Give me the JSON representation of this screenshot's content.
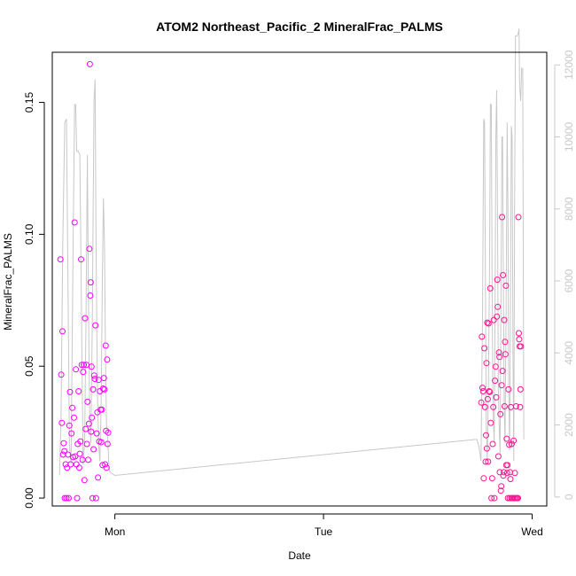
{
  "chart_data": {
    "type": "scatter",
    "title": "ATOM2 Northeast_Pacific_2 MineralFrac_PALMS",
    "xlabel": "Date",
    "ylabel": "MineralFrac_PALMS",
    "x_ticks": [
      "Mon",
      "Tue",
      "Wed"
    ],
    "xlim": [
      -0.3,
      2.07
    ],
    "y_ticks": [
      "0.00",
      "0.05",
      "0.10",
      "0.15"
    ],
    "ylim": [
      -0.003,
      0.169
    ],
    "y2_ticks": [
      "0",
      "2000",
      "4000",
      "6000",
      "8000",
      "10000",
      "12000"
    ],
    "y2lim": [
      -250,
      12350
    ],
    "grid": false,
    "colors": {
      "points_early": "#ff00ff",
      "points_late": "#ff1493",
      "altitude_line": "#c8c8c8",
      "frame": "#000000"
    },
    "series": [
      {
        "kind": "scatter",
        "y_axis": "left",
        "points": [
          [
            -0.261,
            0.0905
          ],
          [
            -0.257,
            0.0468
          ],
          [
            -0.254,
            0.0285
          ],
          [
            -0.251,
            0.0632
          ],
          [
            -0.248,
            0.0165
          ],
          [
            -0.245,
            0.0208
          ],
          [
            -0.242,
            0.0178
          ],
          [
            -0.24,
            0.0
          ],
          [
            -0.236,
            0.0128
          ],
          [
            -0.232,
            0.0
          ],
          [
            -0.229,
            0.0115
          ],
          [
            -0.225,
            0.0165
          ],
          [
            -0.222,
            0.0
          ],
          [
            -0.218,
            0.0275
          ],
          [
            -0.215,
            0.0402
          ],
          [
            -0.212,
            0.0128
          ],
          [
            -0.208,
            0.0245
          ],
          [
            -0.204,
            0.0342
          ],
          [
            -0.2,
            0.0155
          ],
          [
            -0.196,
            0.0305
          ],
          [
            -0.193,
            0.1045
          ],
          [
            -0.19,
            0.0158
          ],
          [
            -0.187,
            0.0488
          ],
          [
            -0.184,
            0.0128
          ],
          [
            -0.181,
            0.0
          ],
          [
            -0.178,
            0.0205
          ],
          [
            -0.174,
            0.0405
          ],
          [
            -0.171,
            0.0115
          ],
          [
            -0.168,
            0.0168
          ],
          [
            -0.165,
            0.0215
          ],
          [
            -0.162,
            0.0905
          ],
          [
            -0.159,
            0.0505
          ],
          [
            -0.155,
            0.0145
          ],
          [
            -0.152,
            0.0478
          ],
          [
            -0.149,
            0.0505
          ],
          [
            -0.146,
            0.0068
          ],
          [
            -0.143,
            0.0682
          ],
          [
            -0.14,
            0.0262
          ],
          [
            -0.137,
            0.0505
          ],
          [
            -0.134,
            0.0205
          ],
          [
            -0.131,
            0.0365
          ],
          [
            -0.128,
            0.0145
          ],
          [
            -0.124,
            0.0282
          ],
          [
            -0.122,
            0.0945
          ],
          [
            -0.12,
            0.1645
          ],
          [
            -0.118,
            0.0768
          ],
          [
            -0.116,
            0.0818
          ],
          [
            -0.114,
            0.0252
          ],
          [
            -0.112,
            0.0498
          ],
          [
            -0.11,
            0.0305
          ],
          [
            -0.107,
            0.0
          ],
          [
            -0.104,
            0.0412
          ],
          [
            -0.102,
            0.0185
          ],
          [
            -0.099,
            0.0465
          ],
          [
            -0.096,
            0.0452
          ],
          [
            -0.093,
            0.0655
          ],
          [
            -0.09,
            0.0
          ],
          [
            -0.087,
            0.0245
          ],
          [
            -0.084,
            0.0325
          ],
          [
            -0.081,
            0.0078
          ],
          [
            -0.078,
            0.0448
          ],
          [
            -0.075,
            0.0215
          ],
          [
            -0.072,
            0.0405
          ],
          [
            -0.068,
            0.0335
          ],
          [
            -0.065,
            0.0212
          ],
          [
            -0.062,
            0.0335
          ],
          [
            -0.059,
            0.0125
          ],
          [
            -0.056,
            0.0415
          ],
          [
            -0.053,
            0.0455
          ],
          [
            -0.05,
            0.0412
          ],
          [
            -0.047,
            0.0128
          ],
          [
            -0.044,
            0.0578
          ],
          [
            -0.042,
            0.0255
          ],
          [
            -0.04,
            0.0115
          ],
          [
            -0.037,
            0.0525
          ],
          [
            -0.035,
            0.0205
          ],
          [
            -0.032,
            0.0248
          ],
          [
            1.756,
            0.0362
          ],
          [
            1.759,
            0.0612
          ],
          [
            1.762,
            0.0418
          ],
          [
            1.765,
            0.0405
          ],
          [
            1.768,
            0.0075
          ],
          [
            1.771,
            0.0568
          ],
          [
            1.774,
            0.0345
          ],
          [
            1.777,
            0.0138
          ],
          [
            1.779,
            0.0238
          ],
          [
            1.781,
            0.0512
          ],
          [
            1.783,
            0.0188
          ],
          [
            1.785,
            0.0665
          ],
          [
            1.787,
            0.0375
          ],
          [
            1.789,
            0.0138
          ],
          [
            1.791,
            0.0662
          ],
          [
            1.794,
            0.0405
          ],
          [
            1.797,
            0.0402
          ],
          [
            1.799,
            0.0795
          ],
          [
            1.802,
            0.0285
          ],
          [
            1.805,
            0.0
          ],
          [
            1.808,
            0.0075
          ],
          [
            1.811,
            0.0205
          ],
          [
            1.814,
            0.0345
          ],
          [
            1.816,
            0.0675
          ],
          [
            1.819,
            0.0
          ],
          [
            1.822,
            0.0445
          ],
          [
            1.825,
            0.0498
          ],
          [
            1.828,
            0.0382
          ],
          [
            1.831,
            0.0688
          ],
          [
            1.833,
            0.0828
          ],
          [
            1.835,
            0.0725
          ],
          [
            1.838,
            0.0158
          ],
          [
            1.841,
            0.0552
          ],
          [
            1.843,
            0.0535
          ],
          [
            1.845,
            0.0098
          ],
          [
            1.848,
            0.0318
          ],
          [
            1.85,
            0.0028
          ],
          [
            1.852,
            0.0045
          ],
          [
            1.854,
            0.0428
          ],
          [
            1.856,
            0.1065
          ],
          [
            1.858,
            0.0482
          ],
          [
            1.86,
            0.0845
          ],
          [
            1.862,
            0.0085
          ],
          [
            1.864,
            0.0098
          ],
          [
            1.866,
            0.0675
          ],
          [
            1.868,
            0.0348
          ],
          [
            1.87,
            0.0592
          ],
          [
            1.872,
            0.0545
          ],
          [
            1.874,
            0.0805
          ],
          [
            1.876,
            0.0125
          ],
          [
            1.878,
            0.0225
          ],
          [
            1.88,
            0.0095
          ],
          [
            1.882,
            0.0125
          ],
          [
            1.884,
            0.0
          ],
          [
            1.887,
            0.0412
          ],
          [
            1.89,
            0.0202
          ],
          [
            1.892,
            0.0
          ],
          [
            1.894,
            0.0098
          ],
          [
            1.896,
            0.0072
          ],
          [
            1.898,
            0.0345
          ],
          [
            1.9,
            0.0
          ],
          [
            1.902,
            0.0205
          ],
          [
            1.905,
            0.0
          ],
          [
            1.908,
            0.0
          ],
          [
            1.911,
            0.0218
          ],
          [
            1.914,
            0.0
          ],
          [
            1.917,
            0.0095
          ],
          [
            1.92,
            0.0
          ],
          [
            1.923,
            0.0348
          ],
          [
            1.926,
            0.0
          ],
          [
            1.929,
            0.0
          ],
          [
            1.932,
            0.0
          ],
          [
            1.934,
            0.1065
          ],
          [
            1.936,
            0.0625
          ],
          [
            1.938,
            0.0602
          ],
          [
            1.94,
            0.0575
          ],
          [
            1.942,
            0.0345
          ],
          [
            1.944,
            0.0412
          ],
          [
            1.946,
            0.0575
          ]
        ]
      },
      {
        "kind": "line",
        "y_axis": "right",
        "points": [
          [
            -0.265,
            600
          ],
          [
            -0.258,
            2200
          ],
          [
            -0.25,
            7000
          ],
          [
            -0.24,
            10400
          ],
          [
            -0.232,
            10500
          ],
          [
            -0.225,
            6000
          ],
          [
            -0.218,
            1500
          ],
          [
            -0.21,
            900
          ],
          [
            -0.2,
            7000
          ],
          [
            -0.193,
            10900
          ],
          [
            -0.188,
            10900
          ],
          [
            -0.183,
            9600
          ],
          [
            -0.175,
            9600
          ],
          [
            -0.168,
            9500
          ],
          [
            -0.16,
            5000
          ],
          [
            -0.152,
            900
          ],
          [
            -0.145,
            1500
          ],
          [
            -0.138,
            5000
          ],
          [
            -0.132,
            9500
          ],
          [
            -0.128,
            6500
          ],
          [
            -0.124,
            4000
          ],
          [
            -0.12,
            2000
          ],
          [
            -0.115,
            1500
          ],
          [
            -0.108,
            5000
          ],
          [
            -0.1,
            11000
          ],
          [
            -0.095,
            11600
          ],
          [
            -0.09,
            7000
          ],
          [
            -0.084,
            3000
          ],
          [
            -0.078,
            1500
          ],
          [
            -0.072,
            1000
          ],
          [
            -0.066,
            2500
          ],
          [
            -0.06,
            6000
          ],
          [
            -0.055,
            8300
          ],
          [
            -0.05,
            7000
          ],
          [
            -0.045,
            4000
          ],
          [
            -0.04,
            2000
          ],
          [
            -0.035,
            1800
          ],
          [
            -0.03,
            1000
          ],
          [
            -0.025,
            700
          ],
          [
            0.0,
            600
          ],
          [
            1.735,
            1600
          ],
          [
            1.745,
            1400
          ],
          [
            1.755,
            1000
          ],
          [
            1.762,
            5000
          ],
          [
            1.768,
            10500
          ],
          [
            1.772,
            10400
          ],
          [
            1.776,
            6000
          ],
          [
            1.78,
            2000
          ],
          [
            1.785,
            1000
          ],
          [
            1.79,
            3000
          ],
          [
            1.795,
            6000
          ],
          [
            1.8,
            10900
          ],
          [
            1.804,
            10900
          ],
          [
            1.808,
            6000
          ],
          [
            1.812,
            2500
          ],
          [
            1.818,
            1500
          ],
          [
            1.822,
            5000
          ],
          [
            1.826,
            10000
          ],
          [
            1.83,
            11300
          ],
          [
            1.834,
            8000
          ],
          [
            1.838,
            3000
          ],
          [
            1.842,
            2000
          ],
          [
            1.846,
            1200
          ],
          [
            1.85,
            5000
          ],
          [
            1.855,
            10000
          ],
          [
            1.858,
            10000
          ],
          [
            1.862,
            6000
          ],
          [
            1.866,
            2500
          ],
          [
            1.87,
            1500
          ],
          [
            1.875,
            5000
          ],
          [
            1.88,
            10400
          ],
          [
            1.884,
            8000
          ],
          [
            1.888,
            3000
          ],
          [
            1.892,
            1300
          ],
          [
            1.896,
            5000
          ],
          [
            1.9,
            10300
          ],
          [
            1.904,
            10000
          ],
          [
            1.908,
            4000
          ],
          [
            1.912,
            1000
          ],
          [
            1.916,
            8000
          ],
          [
            1.92,
            12800
          ],
          [
            1.928,
            12800
          ],
          [
            1.934,
            12900
          ],
          [
            1.937,
            13000
          ],
          [
            1.94,
            11400
          ],
          [
            1.945,
            11000
          ],
          [
            1.95,
            11900
          ],
          [
            1.955,
            11900
          ],
          [
            1.96,
            1600
          ]
        ]
      }
    ]
  }
}
